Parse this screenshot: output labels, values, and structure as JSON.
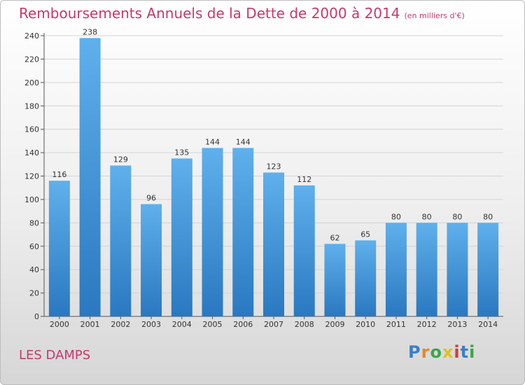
{
  "header": {
    "title": "Remboursements Annuels de la Dette de 2000 à 2014",
    "unit": "(en milliers d'€)"
  },
  "footer": {
    "commune": "LES DAMPS",
    "logo_letters": [
      "P",
      "r",
      "o",
      "x",
      "i",
      "t",
      "i"
    ]
  },
  "colors": {
    "title": "#c8386b",
    "bar_top": "#5fb0ec",
    "bar_bottom": "#2a78c0"
  },
  "chart_data": {
    "type": "bar",
    "title": "Remboursements Annuels de la Dette de 2000 à 2014",
    "subtitle": "(en milliers d'€)",
    "xlabel": "",
    "ylabel": "",
    "categories": [
      "2000",
      "2001",
      "2002",
      "2003",
      "2004",
      "2005",
      "2006",
      "2007",
      "2008",
      "2009",
      "2010",
      "2011",
      "2012",
      "2013",
      "2014"
    ],
    "values": [
      116,
      238,
      129,
      96,
      135,
      144,
      144,
      123,
      112,
      62,
      65,
      80,
      80,
      80,
      80
    ],
    "ylim": [
      0,
      240
    ],
    "yticks": [
      0,
      20,
      40,
      60,
      80,
      100,
      120,
      140,
      160,
      180,
      200,
      220,
      240
    ],
    "grid": true,
    "legend": "none"
  }
}
